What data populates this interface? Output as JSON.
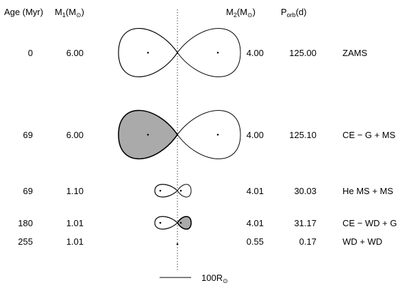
{
  "headers": {
    "age": "Age (Myr)",
    "m1": {
      "main": "M",
      "sub": "1",
      "paren": "(M",
      "sun": "⊙",
      "close": ")"
    },
    "m2": {
      "main": "M",
      "sub": "2",
      "paren": "(M",
      "sun": "⊙",
      "close": ")"
    },
    "porb": {
      "main": "P",
      "sub": "orb",
      "rest": "(d)"
    }
  },
  "rows": [
    {
      "age": "0",
      "m1": "6.00",
      "m2": "4.00",
      "porb": "125.00",
      "stage": "ZAMS",
      "primary_fill": false,
      "secondary_fill": false,
      "size": "large"
    },
    {
      "age": "69",
      "m1": "6.00",
      "m2": "4.00",
      "porb": "125.10",
      "stage": "CE − G + MS",
      "primary_fill": true,
      "secondary_fill": false,
      "size": "large"
    },
    {
      "age": "69",
      "m1": "1.10",
      "m2": "4.01",
      "porb": "30.03",
      "stage": "He MS + MS",
      "primary_fill": false,
      "secondary_fill": false,
      "size": "small"
    },
    {
      "age": "180",
      "m1": "1.01",
      "m2": "4.01",
      "porb": "31.17",
      "stage": "CE − WD + G",
      "primary_fill": false,
      "secondary_fill": true,
      "size": "small"
    },
    {
      "age": "255",
      "m1": "1.01",
      "m2": "0.55",
      "porb": "0.17",
      "stage": "WD + WD",
      "primary_fill": false,
      "secondary_fill": false,
      "size": "point"
    }
  ],
  "scale_bar": {
    "value": "100R",
    "sun": "⊙"
  },
  "colors": {
    "fill": "#aaaaaa",
    "stroke": "#000000"
  }
}
